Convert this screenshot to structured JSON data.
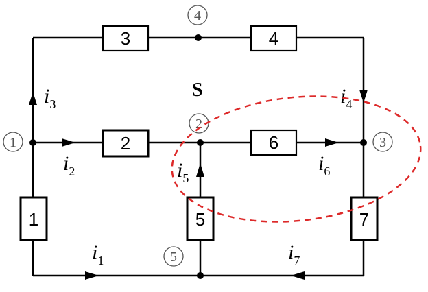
{
  "diagram": {
    "surface_label": "S",
    "surface_color": "#dd2a2a",
    "elements": [
      {
        "id": "e1",
        "label": "1"
      },
      {
        "id": "e2",
        "label": "2"
      },
      {
        "id": "e3",
        "label": "3"
      },
      {
        "id": "e4",
        "label": "4"
      },
      {
        "id": "e5",
        "label": "5"
      },
      {
        "id": "e6",
        "label": "6"
      },
      {
        "id": "e7",
        "label": "7"
      }
    ],
    "nodes": [
      {
        "id": "n1",
        "label": "1"
      },
      {
        "id": "n2",
        "label": "2"
      },
      {
        "id": "n3",
        "label": "3"
      },
      {
        "id": "n4",
        "label": "4"
      },
      {
        "id": "n5",
        "label": "5"
      }
    ],
    "currents": [
      {
        "id": "i1",
        "symbol": "i",
        "sub": "1"
      },
      {
        "id": "i2",
        "symbol": "i",
        "sub": "2"
      },
      {
        "id": "i3",
        "symbol": "i",
        "sub": "3"
      },
      {
        "id": "i4",
        "symbol": "i",
        "sub": "4"
      },
      {
        "id": "i5",
        "symbol": "i",
        "sub": "5"
      },
      {
        "id": "i6",
        "symbol": "i",
        "sub": "6"
      },
      {
        "id": "i7",
        "symbol": "i",
        "sub": "7"
      }
    ]
  }
}
